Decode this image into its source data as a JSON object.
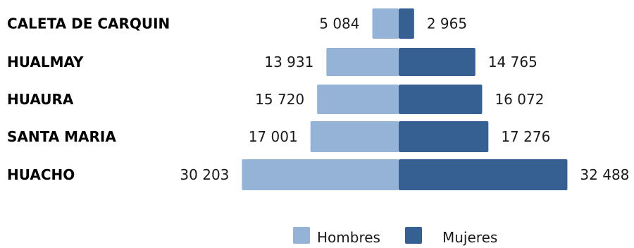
{
  "chart_data": {
    "type": "bar",
    "orientation": "horizontal-diverging",
    "categories": [
      "CALETA DE CARQUIN",
      "HUALMAY",
      "HUAURA",
      "SANTA MARIA",
      "HUACHO"
    ],
    "series": [
      {
        "name": "Hombres",
        "color": "#95b3d7",
        "values": [
          5084,
          13931,
          15720,
          17001,
          30203
        ],
        "labels": [
          "5 084",
          "13 931",
          "15 720",
          "17 001",
          "30 203"
        ]
      },
      {
        "name": "Mujeres",
        "color": "#376092",
        "values": [
          2965,
          14765,
          16072,
          17276,
          32488
        ],
        "labels": [
          "2 965",
          "14 765",
          "16 072",
          "17 276",
          "32 488"
        ]
      }
    ],
    "legend_position": "bottom-center",
    "grid": false
  }
}
